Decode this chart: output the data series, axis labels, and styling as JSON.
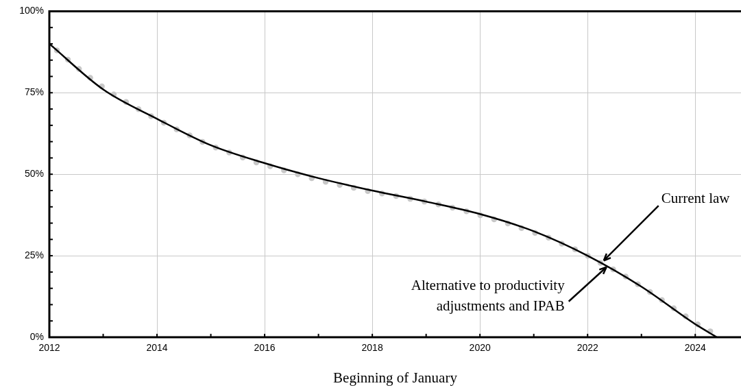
{
  "chart_data": {
    "type": "line",
    "xlabel": "Beginning of January",
    "xlim": [
      2012,
      2024.85
    ],
    "xticks": [
      2012,
      {
        "value": 2013,
        "label": null
      },
      2014,
      {
        "value": 2015,
        "label": null
      },
      2016,
      {
        "value": 2017,
        "label": null
      },
      2018,
      {
        "value": 2019,
        "label": null
      },
      2020,
      {
        "value": 2021,
        "label": null
      },
      2022,
      {
        "value": 2023,
        "label": null
      },
      2024
    ],
    "ylim": [
      0,
      100
    ],
    "yticks": [
      {
        "value": 0,
        "label": "0%"
      },
      {
        "value": 5,
        "label": null
      },
      {
        "value": 10,
        "label": null
      },
      {
        "value": 15,
        "label": null
      },
      {
        "value": 20,
        "label": null
      },
      {
        "value": 25,
        "label": "25%"
      },
      {
        "value": 30,
        "label": null
      },
      {
        "value": 35,
        "label": null
      },
      {
        "value": 40,
        "label": null
      },
      {
        "value": 45,
        "label": null
      },
      {
        "value": 50,
        "label": "50%"
      },
      {
        "value": 55,
        "label": null
      },
      {
        "value": 60,
        "label": null
      },
      {
        "value": 65,
        "label": null
      },
      {
        "value": 70,
        "label": null
      },
      {
        "value": 75,
        "label": "75%"
      },
      {
        "value": 80,
        "label": null
      },
      {
        "value": 85,
        "label": null
      },
      {
        "value": 90,
        "label": null
      },
      {
        "value": 95,
        "label": null
      },
      {
        "value": 100,
        "label": "100%"
      }
    ],
    "grid": true,
    "legend": false,
    "series": [
      {
        "marker": "none",
        "line_style": "dotted",
        "color": "#c8c8c8",
        "x": [
          2012.14,
          2012.37,
          2012.59,
          2012.82,
          2013.05,
          2013.29,
          2013.55,
          2013.79,
          2014.05,
          2014.3,
          2014.57,
          2014.82,
          2015.09,
          2015.35,
          2015.63,
          2015.91,
          2016.18,
          2016.46,
          2016.74,
          2017.01,
          2017.29,
          2017.59,
          2017.86,
          2018.15,
          2018.44,
          2018.72,
          2019.0,
          2019.29,
          2019.57,
          2019.85,
          2020.13,
          2020.4,
          2020.68,
          2020.95,
          2021.22,
          2021.48,
          2021.75,
          2022.0,
          2022.25,
          2022.51,
          2022.77,
          2023.01,
          2023.25,
          2023.49,
          2023.73,
          2023.96,
          2024.21,
          2024.47
        ],
        "values": [
          88.0,
          84.8,
          81.8,
          78.8,
          76.1,
          73.5,
          71.0,
          68.7,
          66.5,
          64.3,
          62.2,
          60.1,
          58.2,
          56.6,
          54.9,
          53.3,
          52.1,
          50.7,
          49.4,
          48.2,
          47.1,
          46.1,
          45.0,
          44.2,
          43.3,
          42.4,
          41.5,
          40.5,
          39.4,
          38.2,
          36.8,
          35.5,
          34.0,
          32.4,
          30.9,
          29.0,
          27.1,
          25.0,
          22.7,
          20.5,
          18.0,
          15.4,
          12.9,
          10.1,
          7.5,
          4.8,
          2.4,
          0.3
        ]
      },
      {
        "marker": "none",
        "line_style": "solid",
        "color": "#000000",
        "x": [
          2012,
          2013,
          2014,
          2015,
          2016,
          2017,
          2018,
          2019,
          2020,
          2021,
          2022,
          2023,
          2024,
          2024.4
        ],
        "values": [
          90,
          76,
          67,
          58.9,
          53.4,
          48.8,
          45.0,
          41.6,
          37.8,
          32.5,
          25.0,
          15.5,
          4,
          0
        ]
      }
    ],
    "annotations": [
      {
        "text": "Current law",
        "x": 2022.3,
        "y": 23.5
      },
      {
        "text": "Alternative to productivity\nadjustments and IPAB",
        "x": 2022.35,
        "y": 21.5
      }
    ]
  }
}
